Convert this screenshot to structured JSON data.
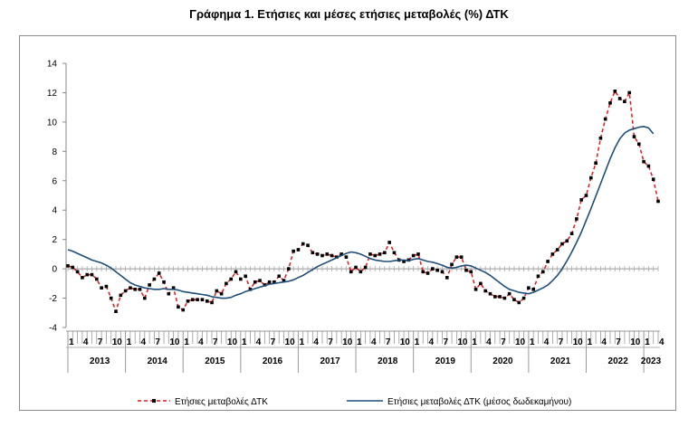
{
  "chart_data": {
    "type": "line",
    "title": "Γράφημα 1. Ετήσιες και μέσες ετήσιες μεταβολές (%) ΔΤΚ",
    "ylim": [
      -4,
      14
    ],
    "yticks": [
      -4,
      -2,
      0,
      2,
      4,
      6,
      8,
      10,
      12,
      14
    ],
    "grid": false,
    "legend_position": "bottom",
    "month_ticks": [
      "1",
      "4",
      "7",
      "10"
    ],
    "years": [
      "2013",
      "2014",
      "2015",
      "2016",
      "2017",
      "2018",
      "2019",
      "2020",
      "2021",
      "2022",
      "2023"
    ],
    "x_start": "2013-01",
    "series": [
      {
        "name": "Ετήσιες μεταβολές ΔΤΚ",
        "color": "#e8151b",
        "marker_color": "#000000",
        "style": "dashed-markers",
        "values": [
          0.2,
          0.1,
          -0.2,
          -0.6,
          -0.4,
          -0.4,
          -0.7,
          -1.3,
          -1.2,
          -2.0,
          -2.9,
          -1.8,
          -1.5,
          -1.3,
          -1.4,
          -1.4,
          -2.0,
          -1.1,
          -0.7,
          -0.3,
          -0.9,
          -1.7,
          -1.3,
          -2.6,
          -2.8,
          -2.2,
          -2.1,
          -2.1,
          -2.1,
          -2.2,
          -2.3,
          -1.5,
          -1.7,
          -1.0,
          -0.7,
          -0.2,
          -0.7,
          -0.5,
          -1.4,
          -0.9,
          -0.8,
          -1.1,
          -0.9,
          -0.9,
          -0.5,
          -0.8,
          0.0,
          1.2,
          1.3,
          1.7,
          1.6,
          1.1,
          1.0,
          0.9,
          1.0,
          0.9,
          0.8,
          1.0,
          0.8,
          -0.2,
          0.1,
          -0.2,
          0.1,
          1.0,
          0.9,
          1.0,
          1.1,
          1.8,
          1.1,
          0.6,
          0.5,
          0.6,
          0.9,
          1.0,
          -0.2,
          -0.3,
          0.0,
          -0.1,
          -0.2,
          -0.6,
          0.3,
          0.8,
          0.8,
          -0.1,
          -0.2,
          -1.4,
          -1.0,
          -1.5,
          -1.7,
          -1.9,
          -1.9,
          -2.0,
          -1.7,
          -2.1,
          -2.3,
          -2.0,
          -1.3,
          -1.4,
          -0.5,
          -0.2,
          0.5,
          1.0,
          1.3,
          1.7,
          1.9,
          2.4,
          3.4,
          4.7,
          5.0,
          6.2,
          7.2,
          8.9,
          10.2,
          11.3,
          12.1,
          11.6,
          11.4,
          12.0,
          9.0,
          8.5,
          7.3,
          7.0,
          6.1,
          4.6
        ]
      },
      {
        "name": "Ετήσιες μεταβολές ΔΤΚ (μέσος δωδεκαμήνου)",
        "color": "#1f4e79",
        "style": "solid",
        "values": [
          1.3,
          1.2,
          1.05,
          0.9,
          0.75,
          0.6,
          0.5,
          0.4,
          0.25,
          0.05,
          -0.2,
          -0.45,
          -0.7,
          -0.95,
          -1.1,
          -1.2,
          -1.3,
          -1.35,
          -1.4,
          -1.4,
          -1.35,
          -1.4,
          -1.4,
          -1.45,
          -1.55,
          -1.6,
          -1.65,
          -1.7,
          -1.75,
          -1.8,
          -1.9,
          -1.95,
          -2.0,
          -2.0,
          -1.95,
          -1.8,
          -1.7,
          -1.55,
          -1.45,
          -1.35,
          -1.25,
          -1.15,
          -1.05,
          -1.0,
          -0.95,
          -0.9,
          -0.85,
          -0.75,
          -0.6,
          -0.45,
          -0.25,
          -0.05,
          0.15,
          0.3,
          0.45,
          0.6,
          0.75,
          0.9,
          1.05,
          1.15,
          1.1,
          1.0,
          0.85,
          0.7,
          0.6,
          0.55,
          0.5,
          0.5,
          0.55,
          0.6,
          0.6,
          0.55,
          0.65,
          0.7,
          0.6,
          0.5,
          0.45,
          0.35,
          0.25,
          0.1,
          0.05,
          0.1,
          0.2,
          0.25,
          0.2,
          0.05,
          -0.1,
          -0.25,
          -0.45,
          -0.7,
          -0.95,
          -1.2,
          -1.4,
          -1.5,
          -1.6,
          -1.65,
          -1.7,
          -1.6,
          -1.45,
          -1.3,
          -1.1,
          -0.8,
          -0.45,
          0.0,
          0.55,
          1.15,
          1.8,
          2.5,
          3.3,
          4.1,
          4.95,
          5.8,
          6.65,
          7.5,
          8.25,
          8.85,
          9.25,
          9.45,
          9.55,
          9.65,
          9.7,
          9.6,
          9.2
        ]
      }
    ]
  }
}
